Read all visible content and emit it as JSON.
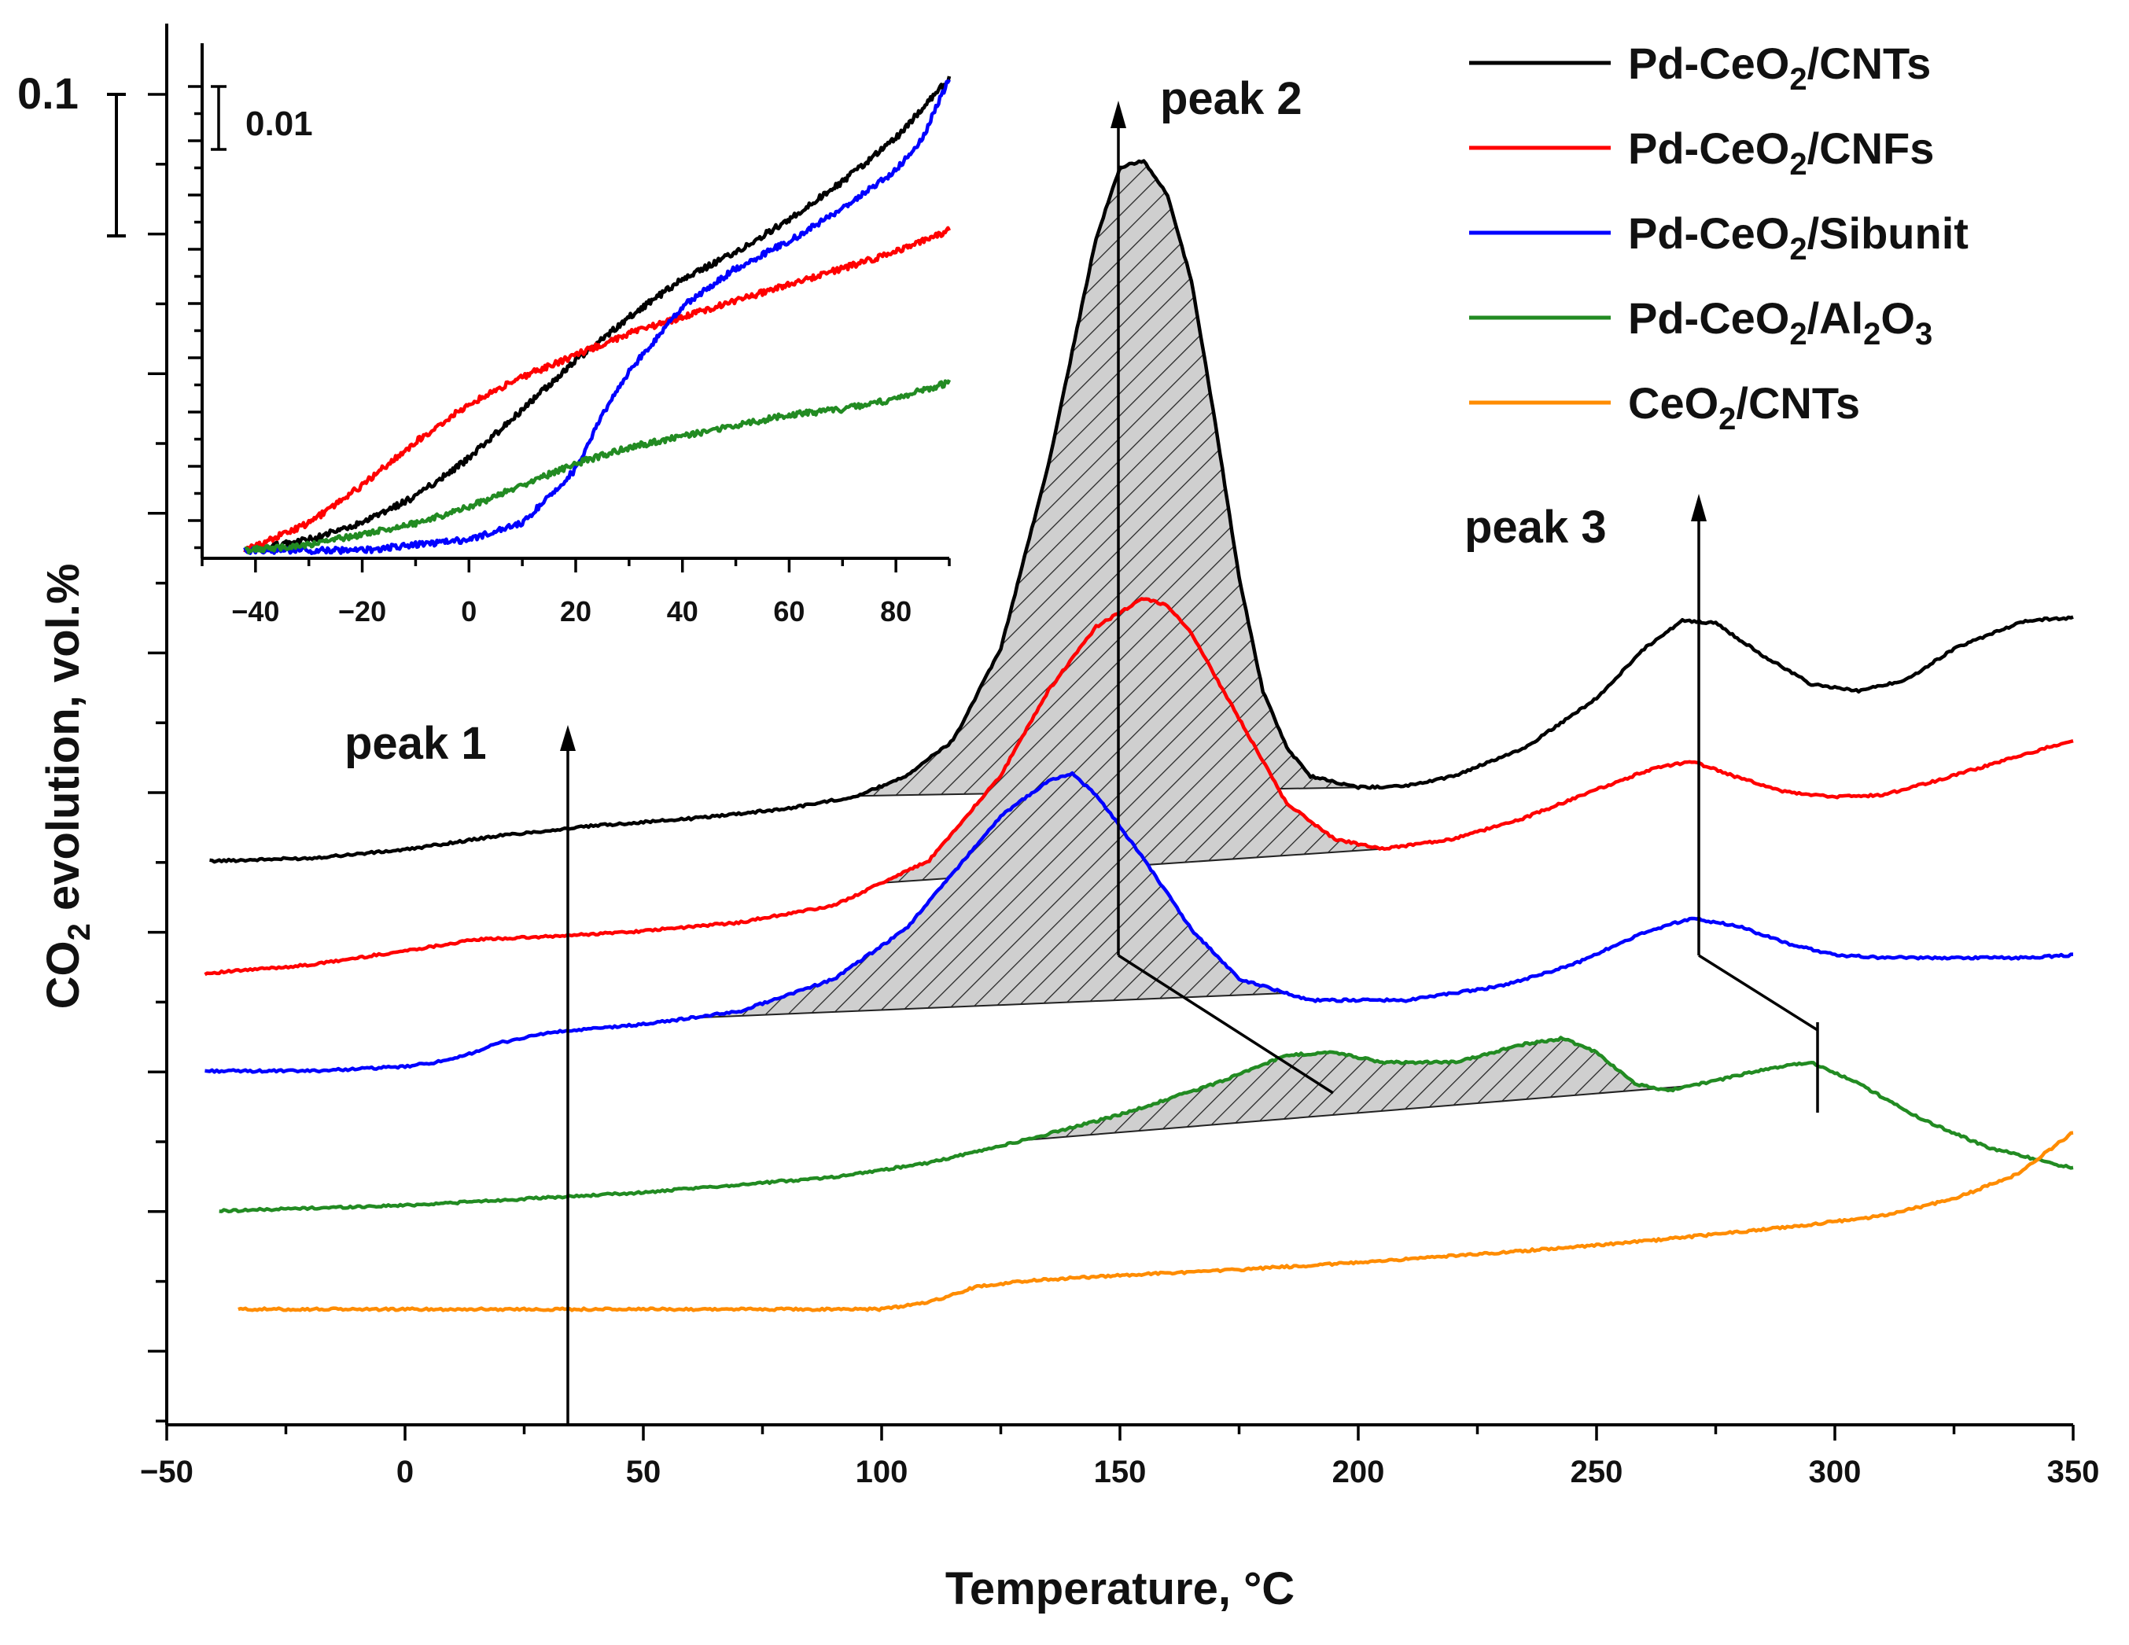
{
  "chart_data": {
    "type": "line",
    "xlabel": "Temperature, °C",
    "ylabel_main": "CO",
    "ylabel_sub": "2",
    "ylabel_rest": " evolution, vol.%",
    "xlim": [
      -50,
      350
    ],
    "x_ticks": [
      "−50",
      "0",
      "50",
      "100",
      "150",
      "200",
      "250",
      "300",
      "350"
    ],
    "scale_bar_label": "0.1",
    "scale_bar_value": 0.1,
    "series": [
      {
        "name": "Pd-CeO2/CNTs",
        "legend_main": "Pd-CeO",
        "legend_sub": "2",
        "legend_rest": "/CNTs",
        "color": "#000000",
        "points": [
          [
            -41,
            0.0
          ],
          [
            -20,
            0.002
          ],
          [
            0,
            0.008
          ],
          [
            20,
            0.018
          ],
          [
            40,
            0.025
          ],
          [
            60,
            0.03
          ],
          [
            80,
            0.037
          ],
          [
            95,
            0.046
          ],
          [
            105,
            0.06
          ],
          [
            115,
            0.085
          ],
          [
            125,
            0.15
          ],
          [
            135,
            0.28
          ],
          [
            145,
            0.44
          ],
          [
            150,
            0.49
          ],
          [
            155,
            0.495
          ],
          [
            160,
            0.47
          ],
          [
            165,
            0.41
          ],
          [
            170,
            0.31
          ],
          [
            175,
            0.2
          ],
          [
            180,
            0.12
          ],
          [
            185,
            0.08
          ],
          [
            190,
            0.06
          ],
          [
            200,
            0.052
          ],
          [
            210,
            0.053
          ],
          [
            220,
            0.06
          ],
          [
            235,
            0.08
          ],
          [
            250,
            0.115
          ],
          [
            260,
            0.15
          ],
          [
            268,
            0.17
          ],
          [
            275,
            0.168
          ],
          [
            285,
            0.145
          ],
          [
            295,
            0.125
          ],
          [
            305,
            0.12
          ],
          [
            315,
            0.128
          ],
          [
            325,
            0.15
          ],
          [
            340,
            0.17
          ],
          [
            350,
            0.172
          ]
        ]
      },
      {
        "name": "Pd-CeO2/CNFs",
        "legend_main": "Pd-CeO",
        "legend_sub": "2",
        "legend_rest": "/CNFs",
        "color": "#ff0000",
        "points": [
          [
            -42,
            0.0
          ],
          [
            -20,
            0.006
          ],
          [
            0,
            0.016
          ],
          [
            15,
            0.024
          ],
          [
            30,
            0.026
          ],
          [
            50,
            0.03
          ],
          [
            70,
            0.036
          ],
          [
            90,
            0.048
          ],
          [
            110,
            0.08
          ],
          [
            125,
            0.14
          ],
          [
            135,
            0.2
          ],
          [
            145,
            0.245
          ],
          [
            155,
            0.265
          ],
          [
            160,
            0.26
          ],
          [
            165,
            0.24
          ],
          [
            175,
            0.18
          ],
          [
            185,
            0.12
          ],
          [
            195,
            0.095
          ],
          [
            205,
            0.088
          ],
          [
            220,
            0.095
          ],
          [
            235,
            0.11
          ],
          [
            250,
            0.13
          ],
          [
            262,
            0.145
          ],
          [
            270,
            0.15
          ],
          [
            280,
            0.138
          ],
          [
            290,
            0.128
          ],
          [
            300,
            0.125
          ],
          [
            310,
            0.126
          ],
          [
            320,
            0.135
          ],
          [
            335,
            0.15
          ],
          [
            350,
            0.165
          ]
        ]
      },
      {
        "name": "Pd-CeO2/Sibunit",
        "legend_main": "Pd-CeO",
        "legend_sub": "2",
        "legend_rest": "/Sibunit",
        "color": "#0000ff",
        "points": [
          [
            -42,
            0.0
          ],
          [
            -20,
            0.0
          ],
          [
            0,
            0.003
          ],
          [
            10,
            0.008
          ],
          [
            20,
            0.02
          ],
          [
            30,
            0.027
          ],
          [
            50,
            0.033
          ],
          [
            70,
            0.042
          ],
          [
            90,
            0.065
          ],
          [
            105,
            0.1
          ],
          [
            115,
            0.14
          ],
          [
            125,
            0.18
          ],
          [
            135,
            0.205
          ],
          [
            140,
            0.21
          ],
          [
            145,
            0.195
          ],
          [
            155,
            0.15
          ],
          [
            165,
            0.1
          ],
          [
            175,
            0.065
          ],
          [
            190,
            0.05
          ],
          [
            210,
            0.05
          ],
          [
            230,
            0.06
          ],
          [
            245,
            0.075
          ],
          [
            260,
            0.098
          ],
          [
            270,
            0.108
          ],
          [
            280,
            0.102
          ],
          [
            290,
            0.09
          ],
          [
            300,
            0.082
          ],
          [
            310,
            0.08
          ],
          [
            325,
            0.08
          ],
          [
            340,
            0.08
          ],
          [
            350,
            0.082
          ]
        ]
      },
      {
        "name": "Pd-CeO2/Al2O3",
        "legend_main": "Pd-CeO",
        "legend_sub": "2",
        "legend_rest": "/Al",
        "legend_sub2": "2",
        "legend_rest2": "O",
        "legend_sub3": "3",
        "color": "#228b22",
        "points": [
          [
            -39,
            0.0
          ],
          [
            0,
            0.004
          ],
          [
            50,
            0.013
          ],
          [
            90,
            0.024
          ],
          [
            110,
            0.034
          ],
          [
            130,
            0.05
          ],
          [
            150,
            0.068
          ],
          [
            170,
            0.09
          ],
          [
            185,
            0.11
          ],
          [
            195,
            0.112
          ],
          [
            205,
            0.105
          ],
          [
            220,
            0.105
          ],
          [
            235,
            0.118
          ],
          [
            243,
            0.122
          ],
          [
            250,
            0.112
          ],
          [
            258,
            0.09
          ],
          [
            265,
            0.085
          ],
          [
            275,
            0.092
          ],
          [
            285,
            0.1
          ],
          [
            295,
            0.105
          ],
          [
            305,
            0.09
          ],
          [
            318,
            0.065
          ],
          [
            332,
            0.045
          ],
          [
            350,
            0.03
          ]
        ]
      },
      {
        "name": "CeO2/CNTs",
        "legend_main": "CeO",
        "legend_sub": "2",
        "legend_rest": "/CNTs",
        "color": "#ff8c00",
        "points": [
          [
            -35,
            0.0
          ],
          [
            0,
            0.0
          ],
          [
            50,
            0.0
          ],
          [
            100,
            0.0
          ],
          [
            110,
            0.005
          ],
          [
            120,
            0.016
          ],
          [
            130,
            0.02
          ],
          [
            150,
            0.024
          ],
          [
            170,
            0.027
          ],
          [
            200,
            0.033
          ],
          [
            230,
            0.04
          ],
          [
            260,
            0.048
          ],
          [
            290,
            0.058
          ],
          [
            310,
            0.066
          ],
          [
            325,
            0.078
          ],
          [
            338,
            0.095
          ],
          [
            350,
            0.125
          ]
        ]
      }
    ],
    "annotations": [
      "peak 1",
      "peak 2",
      "peak 3"
    ],
    "inset": {
      "x_ticks": [
        "−40",
        "−20",
        "0",
        "20",
        "40",
        "60",
        "80"
      ],
      "xlim": [
        -50,
        90
      ],
      "scale_bar_label": "0.01",
      "scale_bar_value": 0.01,
      "series": [
        {
          "name": "Pd-CeO2/CNTs",
          "color": "#000000",
          "points": [
            [
              -42,
              0.0
            ],
            [
              -30,
              0.002
            ],
            [
              -20,
              0.005
            ],
            [
              -10,
              0.01
            ],
            [
              0,
              0.017
            ],
            [
              10,
              0.026
            ],
            [
              20,
              0.035
            ],
            [
              30,
              0.043
            ],
            [
              40,
              0.05
            ],
            [
              50,
              0.055
            ],
            [
              60,
              0.061
            ],
            [
              70,
              0.068
            ],
            [
              80,
              0.076
            ],
            [
              90,
              0.087
            ]
          ]
        },
        {
          "name": "Pd-CeO2/CNFs",
          "color": "#ff0000",
          "points": [
            [
              -42,
              0.0
            ],
            [
              -30,
              0.005
            ],
            [
              -20,
              0.012
            ],
            [
              -10,
              0.02
            ],
            [
              0,
              0.027
            ],
            [
              10,
              0.032
            ],
            [
              20,
              0.036
            ],
            [
              30,
              0.04
            ],
            [
              40,
              0.043
            ],
            [
              50,
              0.046
            ],
            [
              60,
              0.049
            ],
            [
              70,
              0.052
            ],
            [
              80,
              0.055
            ],
            [
              90,
              0.059
            ]
          ]
        },
        {
          "name": "Pd-CeO2/Sibunit",
          "color": "#0000ff",
          "points": [
            [
              -42,
              0.0
            ],
            [
              -30,
              0.0
            ],
            [
              -20,
              0.0
            ],
            [
              -10,
              0.001
            ],
            [
              0,
              0.002
            ],
            [
              10,
              0.005
            ],
            [
              20,
              0.015
            ],
            [
              25,
              0.025
            ],
            [
              30,
              0.033
            ],
            [
              40,
              0.045
            ],
            [
              50,
              0.052
            ],
            [
              60,
              0.057
            ],
            [
              70,
              0.063
            ],
            [
              80,
              0.07
            ],
            [
              85,
              0.076
            ],
            [
              90,
              0.087
            ]
          ]
        },
        {
          "name": "Pd-CeO2/Al2O3",
          "color": "#228b22",
          "points": [
            [
              -42,
              0.0
            ],
            [
              -30,
              0.001
            ],
            [
              -20,
              0.003
            ],
            [
              -10,
              0.005
            ],
            [
              0,
              0.008
            ],
            [
              10,
              0.012
            ],
            [
              20,
              0.016
            ],
            [
              30,
              0.019
            ],
            [
              40,
              0.021
            ],
            [
              50,
              0.023
            ],
            [
              60,
              0.025
            ],
            [
              70,
              0.026
            ],
            [
              80,
              0.028
            ],
            [
              90,
              0.031
            ]
          ]
        }
      ]
    }
  }
}
